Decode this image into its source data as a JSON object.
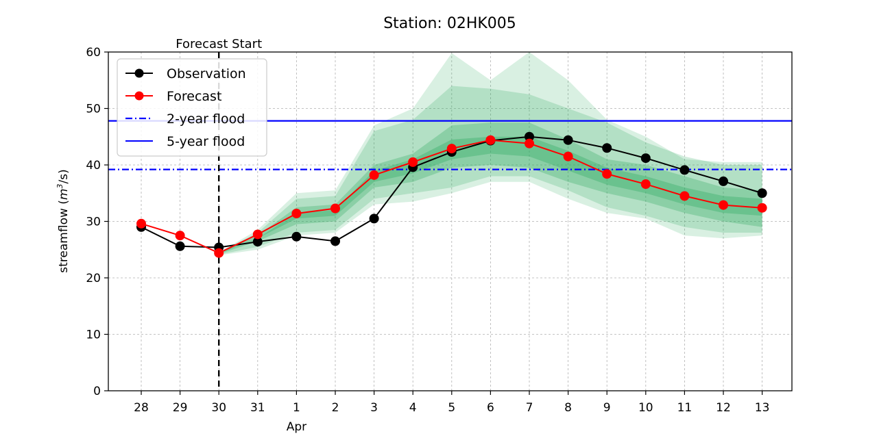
{
  "chart_data": {
    "type": "line",
    "title": "Station: 02HK005",
    "xlabel": "",
    "ylabel": "streamflow (m³/s)",
    "ylabel_main": "streamflow (",
    "ylabel_unit": "m",
    "ylabel_sup": "3",
    "ylabel_tail": "/s)",
    "month_label": "Apr",
    "ylim": [
      0,
      60
    ],
    "yticks": [
      0,
      10,
      20,
      30,
      40,
      50,
      60
    ],
    "categories": [
      "28",
      "29",
      "30",
      "31",
      "1",
      "2",
      "3",
      "4",
      "5",
      "6",
      "7",
      "8",
      "9",
      "10",
      "11",
      "12",
      "13"
    ],
    "grid": true,
    "legend_position": "top-left",
    "forecast_start_index": 2,
    "forecast_start_label": "Forecast Start",
    "series": [
      {
        "name": "Observation",
        "color": "#000000",
        "values": [
          29.0,
          25.6,
          25.4,
          26.4,
          27.3,
          26.5,
          30.5,
          39.6,
          42.3,
          44.3,
          45.0,
          44.4,
          43.0,
          41.2,
          39.1,
          37.1,
          35.0
        ]
      },
      {
        "name": "Forecast",
        "color": "#ff0000",
        "start_index": 0,
        "values": [
          29.6,
          27.5,
          24.4,
          27.7,
          31.4,
          32.3,
          38.2,
          40.5,
          42.9,
          44.4,
          43.8,
          41.5,
          38.4,
          36.6,
          34.5,
          32.9,
          32.4
        ]
      }
    ],
    "reference_lines": [
      {
        "name": "2-year flood",
        "value": 39.2,
        "style": "dashdot",
        "color": "#0000ff"
      },
      {
        "name": "5-year flood",
        "value": 47.8,
        "style": "solid",
        "color": "#0000ff"
      }
    ],
    "bands": {
      "start_index": 2,
      "color": "#2eaa60",
      "layers": [
        {
          "opacity": 0.18,
          "upper": [
            24.5,
            28.5,
            35.0,
            35.5,
            47.0,
            50.0,
            59.8,
            55.0,
            60.0,
            55.0,
            48.0,
            45.0,
            41.0,
            40.5,
            40.5
          ],
          "lower": [
            24.0,
            25.0,
            27.5,
            28.0,
            33.0,
            33.5,
            35.0,
            37.0,
            37.0,
            34.0,
            31.5,
            30.5,
            27.5,
            27.0,
            27.5
          ]
        },
        {
          "opacity": 0.22,
          "upper": [
            24.5,
            28.0,
            34.0,
            34.5,
            46.0,
            48.0,
            54.0,
            53.5,
            52.5,
            50.0,
            47.5,
            44.0,
            41.5,
            40.0,
            40.0
          ],
          "lower": [
            24.1,
            25.5,
            28.0,
            28.5,
            34.0,
            35.0,
            36.0,
            38.0,
            38.0,
            35.5,
            32.5,
            31.0,
            29.0,
            28.0,
            28.0
          ]
        },
        {
          "opacity": 0.3,
          "upper": [
            24.5,
            27.5,
            32.5,
            33.0,
            40.0,
            42.0,
            47.0,
            47.5,
            47.5,
            44.5,
            41.0,
            40.0,
            38.0,
            36.0,
            35.5
          ],
          "lower": [
            24.2,
            26.5,
            29.5,
            30.0,
            36.0,
            37.0,
            39.5,
            40.0,
            39.5,
            37.0,
            35.0,
            33.5,
            31.5,
            30.0,
            29.0
          ]
        },
        {
          "opacity": 0.35,
          "upper": [
            24.5,
            27.0,
            31.5,
            32.0,
            39.0,
            41.0,
            44.5,
            45.0,
            45.0,
            42.5,
            39.5,
            38.0,
            36.0,
            34.5,
            34.0
          ],
          "lower": [
            24.3,
            27.0,
            30.5,
            31.0,
            37.0,
            38.5,
            41.0,
            42.0,
            41.5,
            39.0,
            36.5,
            35.0,
            33.0,
            31.5,
            31.0
          ]
        }
      ]
    }
  }
}
